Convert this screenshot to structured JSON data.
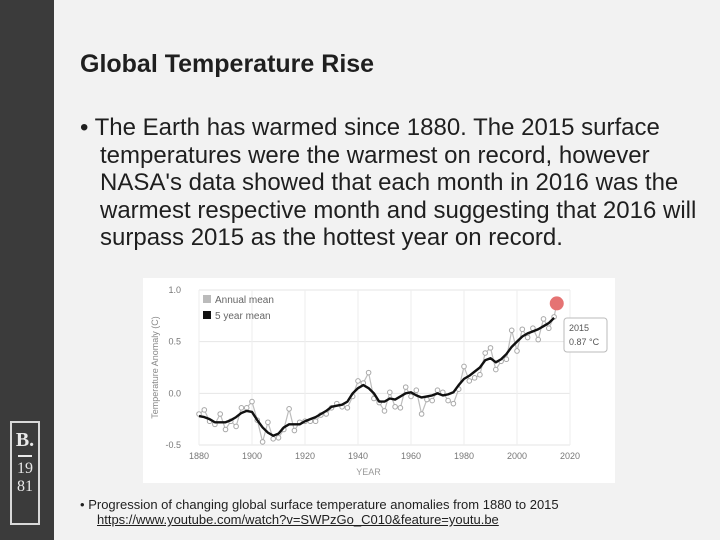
{
  "slide": {
    "title": "Global Temperature Rise",
    "bullet1": "The Earth has warmed since 1880. The 2015 surface temperatures were the warmest on record, however NASA's data showed that each month in 2016 was the warmest respective month and suggesting that 2016 will surpass 2015 as the hottest year on record.",
    "bullet2_text": "Progression of changing global surface temperature anomalies from 1880 to 2015",
    "bullet2_link": "https://www.youtube.com/watch?v=SWPzGo_C010&feature=youtu.be",
    "bullet_symbol": "•"
  },
  "logo": {
    "letter": "B.",
    "year_top": "19",
    "year_bottom": "81"
  },
  "chart_data": {
    "type": "line",
    "title": "",
    "xlabel": "YEAR",
    "ylabel": "Temperature Anomaly (C)",
    "xlim": [
      1880,
      2020
    ],
    "ylim": [
      -0.5,
      1.0
    ],
    "xticks": [
      1880,
      1900,
      1920,
      1940,
      1960,
      1980,
      2000,
      2020
    ],
    "xtick_labels": [
      "1880",
      "1900",
      "1920",
      "1940",
      "1960",
      "1980",
      "2000",
      "2020"
    ],
    "yticks": [
      -0.5,
      0.0,
      0.5,
      1.0
    ],
    "ytick_labels": [
      "-0.5",
      "0.0",
      "0.5",
      "1.0"
    ],
    "legend": [
      "Annual mean",
      "5 year mean"
    ],
    "legend_colors": [
      "#bbbbbb",
      "#111111"
    ],
    "legend_position": "top-left",
    "annotation": {
      "year": 2015,
      "value": 0.87,
      "label_year": "2015",
      "label_value": "0.87 °C"
    },
    "series": [
      {
        "name": "Annual mean",
        "x": [
          1880,
          1882,
          1884,
          1886,
          1888,
          1890,
          1892,
          1894,
          1896,
          1898,
          1900,
          1902,
          1904,
          1906,
          1908,
          1910,
          1912,
          1914,
          1916,
          1918,
          1920,
          1922,
          1924,
          1926,
          1928,
          1930,
          1932,
          1934,
          1936,
          1938,
          1940,
          1942,
          1944,
          1946,
          1948,
          1950,
          1952,
          1954,
          1956,
          1958,
          1960,
          1962,
          1964,
          1966,
          1968,
          1970,
          1972,
          1974,
          1976,
          1978,
          1980,
          1982,
          1984,
          1986,
          1988,
          1990,
          1992,
          1994,
          1996,
          1998,
          2000,
          2002,
          2004,
          2006,
          2008,
          2010,
          2012,
          2014,
          2015
        ],
        "values": [
          -0.2,
          -0.16,
          -0.27,
          -0.3,
          -0.2,
          -0.35,
          -0.27,
          -0.32,
          -0.14,
          -0.14,
          -0.08,
          -0.26,
          -0.47,
          -0.28,
          -0.44,
          -0.43,
          -0.35,
          -0.15,
          -0.36,
          -0.28,
          -0.27,
          -0.27,
          -0.27,
          -0.21,
          -0.2,
          -0.14,
          -0.1,
          -0.13,
          -0.14,
          -0.03,
          0.12,
          0.1,
          0.2,
          -0.05,
          -0.09,
          -0.17,
          0.01,
          -0.13,
          -0.14,
          0.06,
          -0.03,
          0.03,
          -0.2,
          -0.06,
          -0.07,
          0.03,
          0.01,
          -0.07,
          -0.1,
          0.04,
          0.26,
          0.12,
          0.15,
          0.18,
          0.39,
          0.44,
          0.23,
          0.31,
          0.33,
          0.61,
          0.41,
          0.62,
          0.54,
          0.63,
          0.52,
          0.72,
          0.63,
          0.74,
          0.87
        ]
      },
      {
        "name": "5 year mean",
        "x": [
          1880,
          1882,
          1884,
          1886,
          1888,
          1890,
          1892,
          1894,
          1896,
          1898,
          1900,
          1902,
          1904,
          1906,
          1908,
          1910,
          1912,
          1914,
          1916,
          1918,
          1920,
          1922,
          1924,
          1926,
          1928,
          1930,
          1932,
          1934,
          1936,
          1938,
          1940,
          1942,
          1944,
          1946,
          1948,
          1950,
          1952,
          1954,
          1956,
          1958,
          1960,
          1962,
          1964,
          1966,
          1968,
          1970,
          1972,
          1974,
          1976,
          1978,
          1980,
          1982,
          1984,
          1986,
          1988,
          1990,
          1992,
          1994,
          1996,
          1998,
          2000,
          2002,
          2004,
          2006,
          2008,
          2010,
          2012,
          2014
        ],
        "values": [
          -0.22,
          -0.23,
          -0.25,
          -0.28,
          -0.28,
          -0.28,
          -0.26,
          -0.23,
          -0.19,
          -0.17,
          -0.18,
          -0.26,
          -0.33,
          -0.38,
          -0.41,
          -0.39,
          -0.33,
          -0.3,
          -0.3,
          -0.3,
          -0.27,
          -0.25,
          -0.23,
          -0.2,
          -0.17,
          -0.13,
          -0.12,
          -0.11,
          -0.08,
          0.0,
          0.05,
          0.08,
          0.05,
          0.0,
          -0.08,
          -0.08,
          -0.05,
          -0.06,
          -0.03,
          0.0,
          0.01,
          -0.02,
          -0.04,
          -0.03,
          -0.02,
          0.0,
          -0.02,
          -0.01,
          0.01,
          0.08,
          0.14,
          0.17,
          0.21,
          0.25,
          0.32,
          0.34,
          0.3,
          0.33,
          0.38,
          0.45,
          0.5,
          0.55,
          0.58,
          0.6,
          0.62,
          0.65,
          0.68,
          0.73
        ]
      }
    ]
  }
}
